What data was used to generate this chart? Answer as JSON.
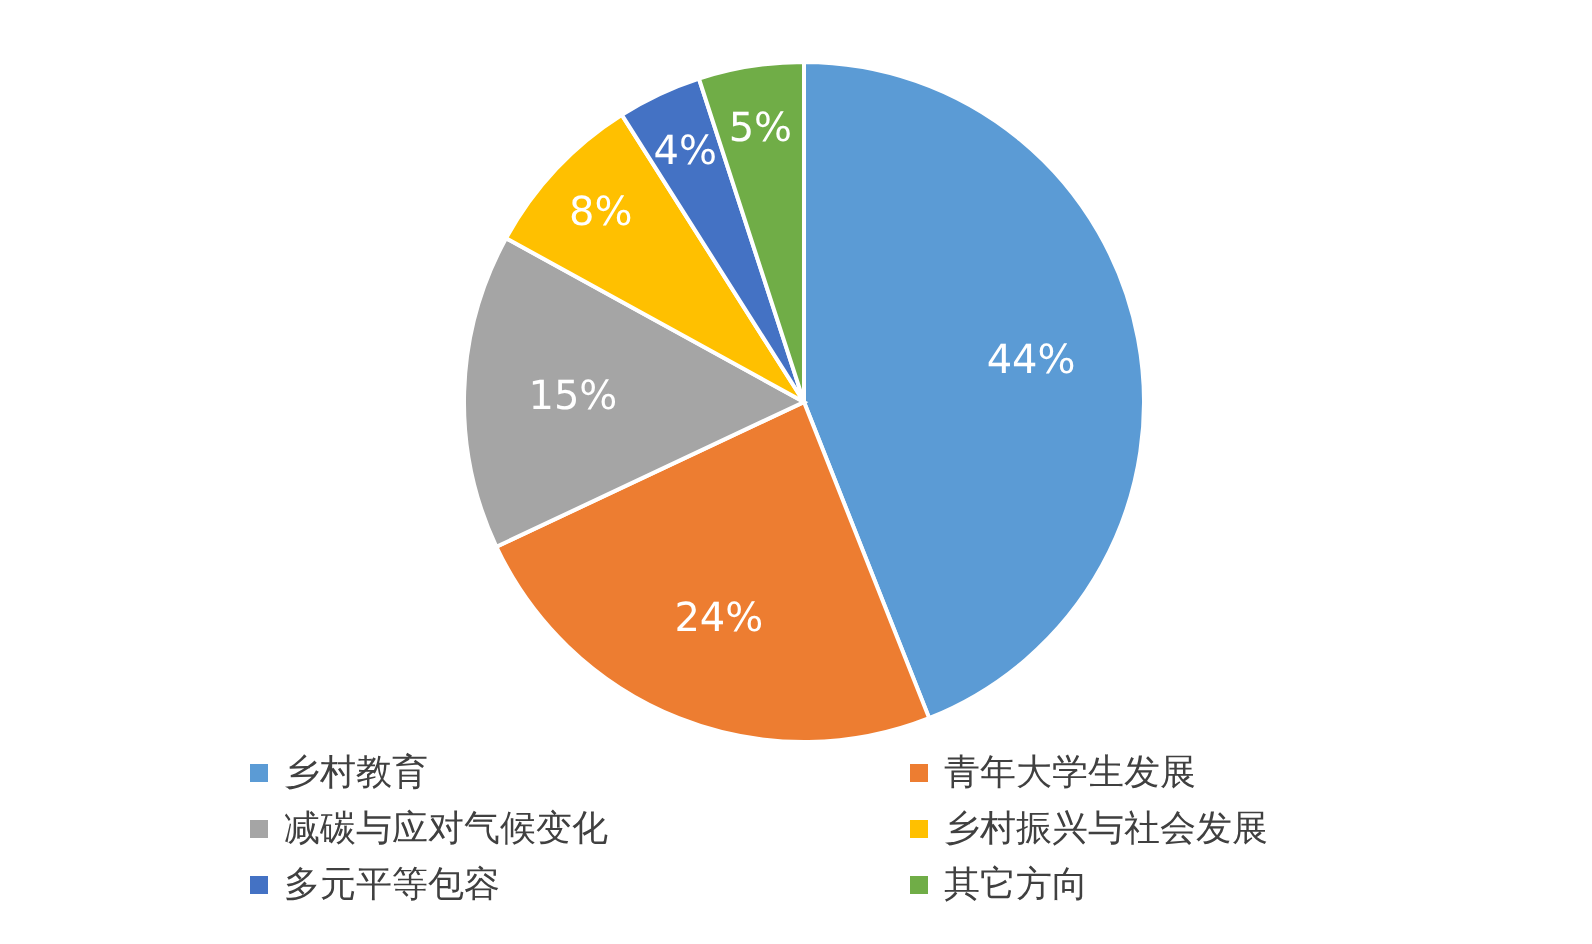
{
  "chart_data": {
    "type": "pie",
    "categories": [
      "乡村教育",
      "青年大学生发展",
      "减碳与应对气候变化",
      "乡村振兴与社会发展",
      "多元平等包容",
      "其它方向"
    ],
    "values": [
      44,
      24,
      15,
      8,
      4,
      5
    ],
    "colors": [
      "#5b9bd5",
      "#ed7d31",
      "#a5a5a5",
      "#ffc000",
      "#4472c4",
      "#70ad47"
    ],
    "value_labels": [
      "44%",
      "24%",
      "15%",
      "8%",
      "4%",
      "5%"
    ],
    "legend": "bottom"
  }
}
